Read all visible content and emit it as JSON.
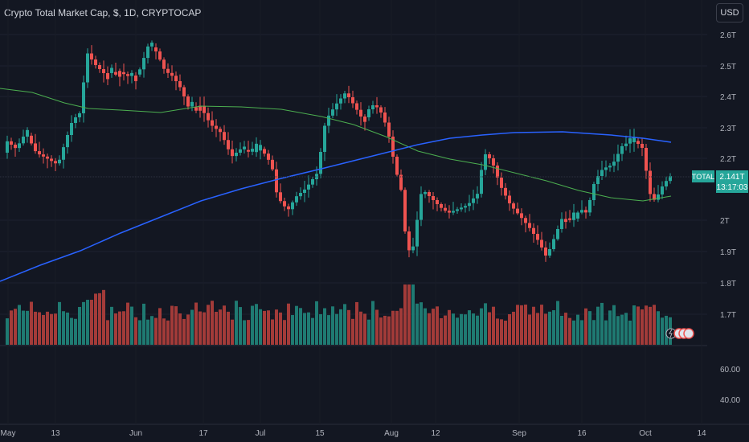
{
  "header": {
    "title": "Crypto Total Market Cap, $, 1D, CRYPTOCAP",
    "currency_button": "USD"
  },
  "chart_data": {
    "type": "candlestick",
    "price_axis": {
      "ticks": [
        "2.6T",
        "2.5T",
        "2.4T",
        "2.3T",
        "2.2T",
        "2T",
        "1.9T",
        "1.8T",
        "1.7T"
      ]
    },
    "lower_axis": {
      "ticks": [
        "60.00",
        "40.00"
      ]
    },
    "x_axis": {
      "ticks": [
        "May",
        "13",
        "Jun",
        "17",
        "Jul",
        "15",
        "Aug",
        "12",
        "Sep",
        "16",
        "Oct",
        "14"
      ]
    },
    "last_price": {
      "label": "TOTAL",
      "value": "2.141T",
      "countdown": "13:17:03"
    },
    "colors": {
      "up": "#26a69a",
      "down": "#ef5350",
      "ma_blue": "#2962ff",
      "ma_green": "#4caf50",
      "background": "#131722"
    }
  }
}
